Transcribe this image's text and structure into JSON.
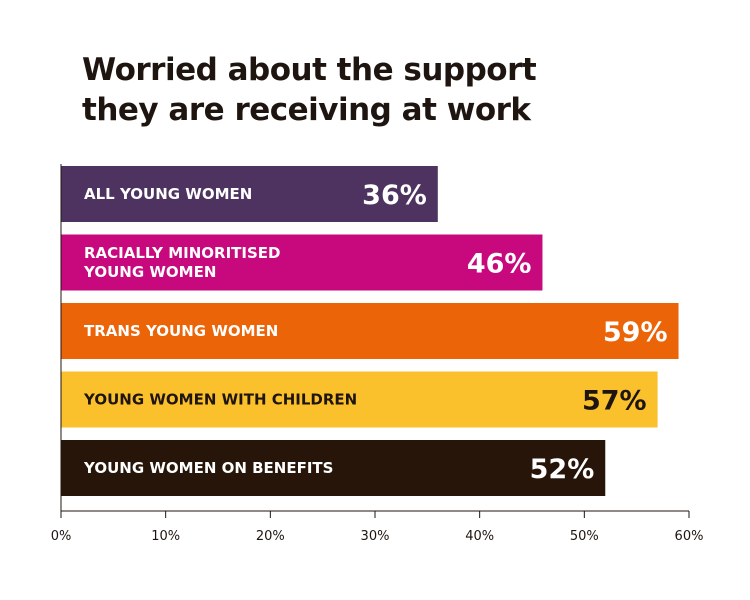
{
  "chart_data": {
    "type": "bar",
    "orientation": "horizontal",
    "title_lines": [
      "Worried about the support",
      "they are receiving at work"
    ],
    "categories": [
      [
        "ALL YOUNG WOMEN"
      ],
      [
        "RACIALLY MINORITISED",
        "YOUNG WOMEN"
      ],
      [
        "TRANS YOUNG WOMEN"
      ],
      [
        "YOUNG WOMEN WITH CHILDREN"
      ],
      [
        "YOUNG WOMEN ON BENEFITS"
      ]
    ],
    "values": [
      36,
      46,
      59,
      57,
      52
    ],
    "value_labels": [
      "36%",
      "46%",
      "59%",
      "57%",
      "52%"
    ],
    "colors": [
      "#4e3361",
      "#c8097d",
      "#ec6408",
      "#fbc12d",
      "#261508"
    ],
    "text_colors": [
      "#ffffff",
      "#ffffff",
      "#ffffff",
      "#1f1510",
      "#ffffff"
    ],
    "xlim": [
      0,
      60
    ],
    "xticks": [
      0,
      10,
      20,
      30,
      40,
      50,
      60
    ],
    "xtick_labels": [
      "0%",
      "10%",
      "20%",
      "30%",
      "40%",
      "50%",
      "60%"
    ],
    "grid": false
  }
}
